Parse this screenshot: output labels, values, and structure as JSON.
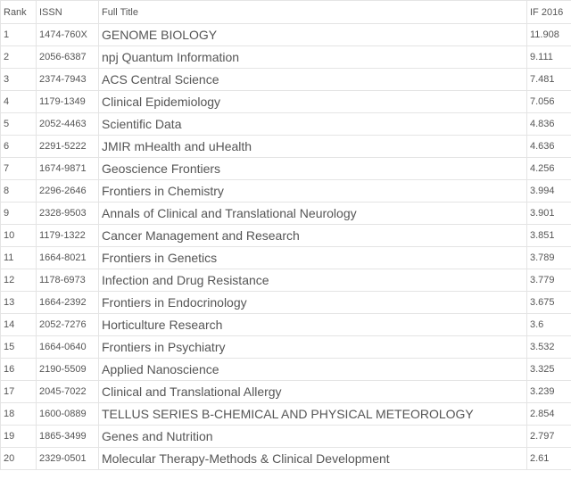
{
  "columns": [
    {
      "key": "rank",
      "label": "Rank",
      "class": "col-rank"
    },
    {
      "key": "issn",
      "label": "ISSN",
      "class": "col-issn"
    },
    {
      "key": "title",
      "label": "Full Title",
      "class": "col-title"
    },
    {
      "key": "if",
      "label": "IF 2016",
      "class": "col-if"
    }
  ],
  "rows": [
    {
      "rank": "1",
      "issn": "1474-760X",
      "title": "GENOME BIOLOGY",
      "if": "11.908"
    },
    {
      "rank": "2",
      "issn": "2056-6387",
      "title": "npj Quantum Information",
      "if": "9.111"
    },
    {
      "rank": "3",
      "issn": "2374-7943",
      "title": "ACS Central Science",
      "if": "7.481"
    },
    {
      "rank": "4",
      "issn": "1179-1349",
      "title": "Clinical Epidemiology",
      "if": "7.056"
    },
    {
      "rank": "5",
      "issn": "2052-4463",
      "title": "Scientific Data",
      "if": "4.836"
    },
    {
      "rank": "6",
      "issn": "2291-5222",
      "title": "JMIR mHealth and uHealth",
      "if": "4.636"
    },
    {
      "rank": "7",
      "issn": "1674-9871",
      "title": "Geoscience Frontiers",
      "if": "4.256"
    },
    {
      "rank": "8",
      "issn": "2296-2646",
      "title": "Frontiers in Chemistry",
      "if": "3.994"
    },
    {
      "rank": "9",
      "issn": "2328-9503",
      "title": "Annals of Clinical and Translational Neurology",
      "if": "3.901"
    },
    {
      "rank": "10",
      "issn": "1179-1322",
      "title": "Cancer Management and Research",
      "if": "3.851"
    },
    {
      "rank": "11",
      "issn": "1664-8021",
      "title": "Frontiers in Genetics",
      "if": "3.789"
    },
    {
      "rank": "12",
      "issn": "1178-6973",
      "title": "Infection and Drug Resistance",
      "if": "3.779"
    },
    {
      "rank": "13",
      "issn": "1664-2392",
      "title": "Frontiers in Endocrinology",
      "if": "3.675"
    },
    {
      "rank": "14",
      "issn": "2052-7276",
      "title": "Horticulture Research",
      "if": "3.6"
    },
    {
      "rank": "15",
      "issn": "1664-0640",
      "title": "Frontiers in Psychiatry",
      "if": "3.532"
    },
    {
      "rank": "16",
      "issn": "2190-5509",
      "title": "Applied Nanoscience",
      "if": "3.325"
    },
    {
      "rank": "17",
      "issn": "2045-7022",
      "title": "Clinical and Translational Allergy",
      "if": "3.239"
    },
    {
      "rank": "18",
      "issn": "1600-0889",
      "title": "TELLUS SERIES B-CHEMICAL AND PHYSICAL METEOROLOGY",
      "if": "2.854"
    },
    {
      "rank": "19",
      "issn": "1865-3499",
      "title": "Genes and Nutrition",
      "if": "2.797"
    },
    {
      "rank": "20",
      "issn": "2329-0501",
      "title": "Molecular Therapy-Methods & Clinical Development",
      "if": "2.61"
    }
  ],
  "style": {
    "border_color": "#e4e4e4",
    "text_color": "#555555",
    "header_fontsize": 11,
    "small_fontsize": 11,
    "title_fontsize": 14,
    "background_color": "#ffffff"
  }
}
